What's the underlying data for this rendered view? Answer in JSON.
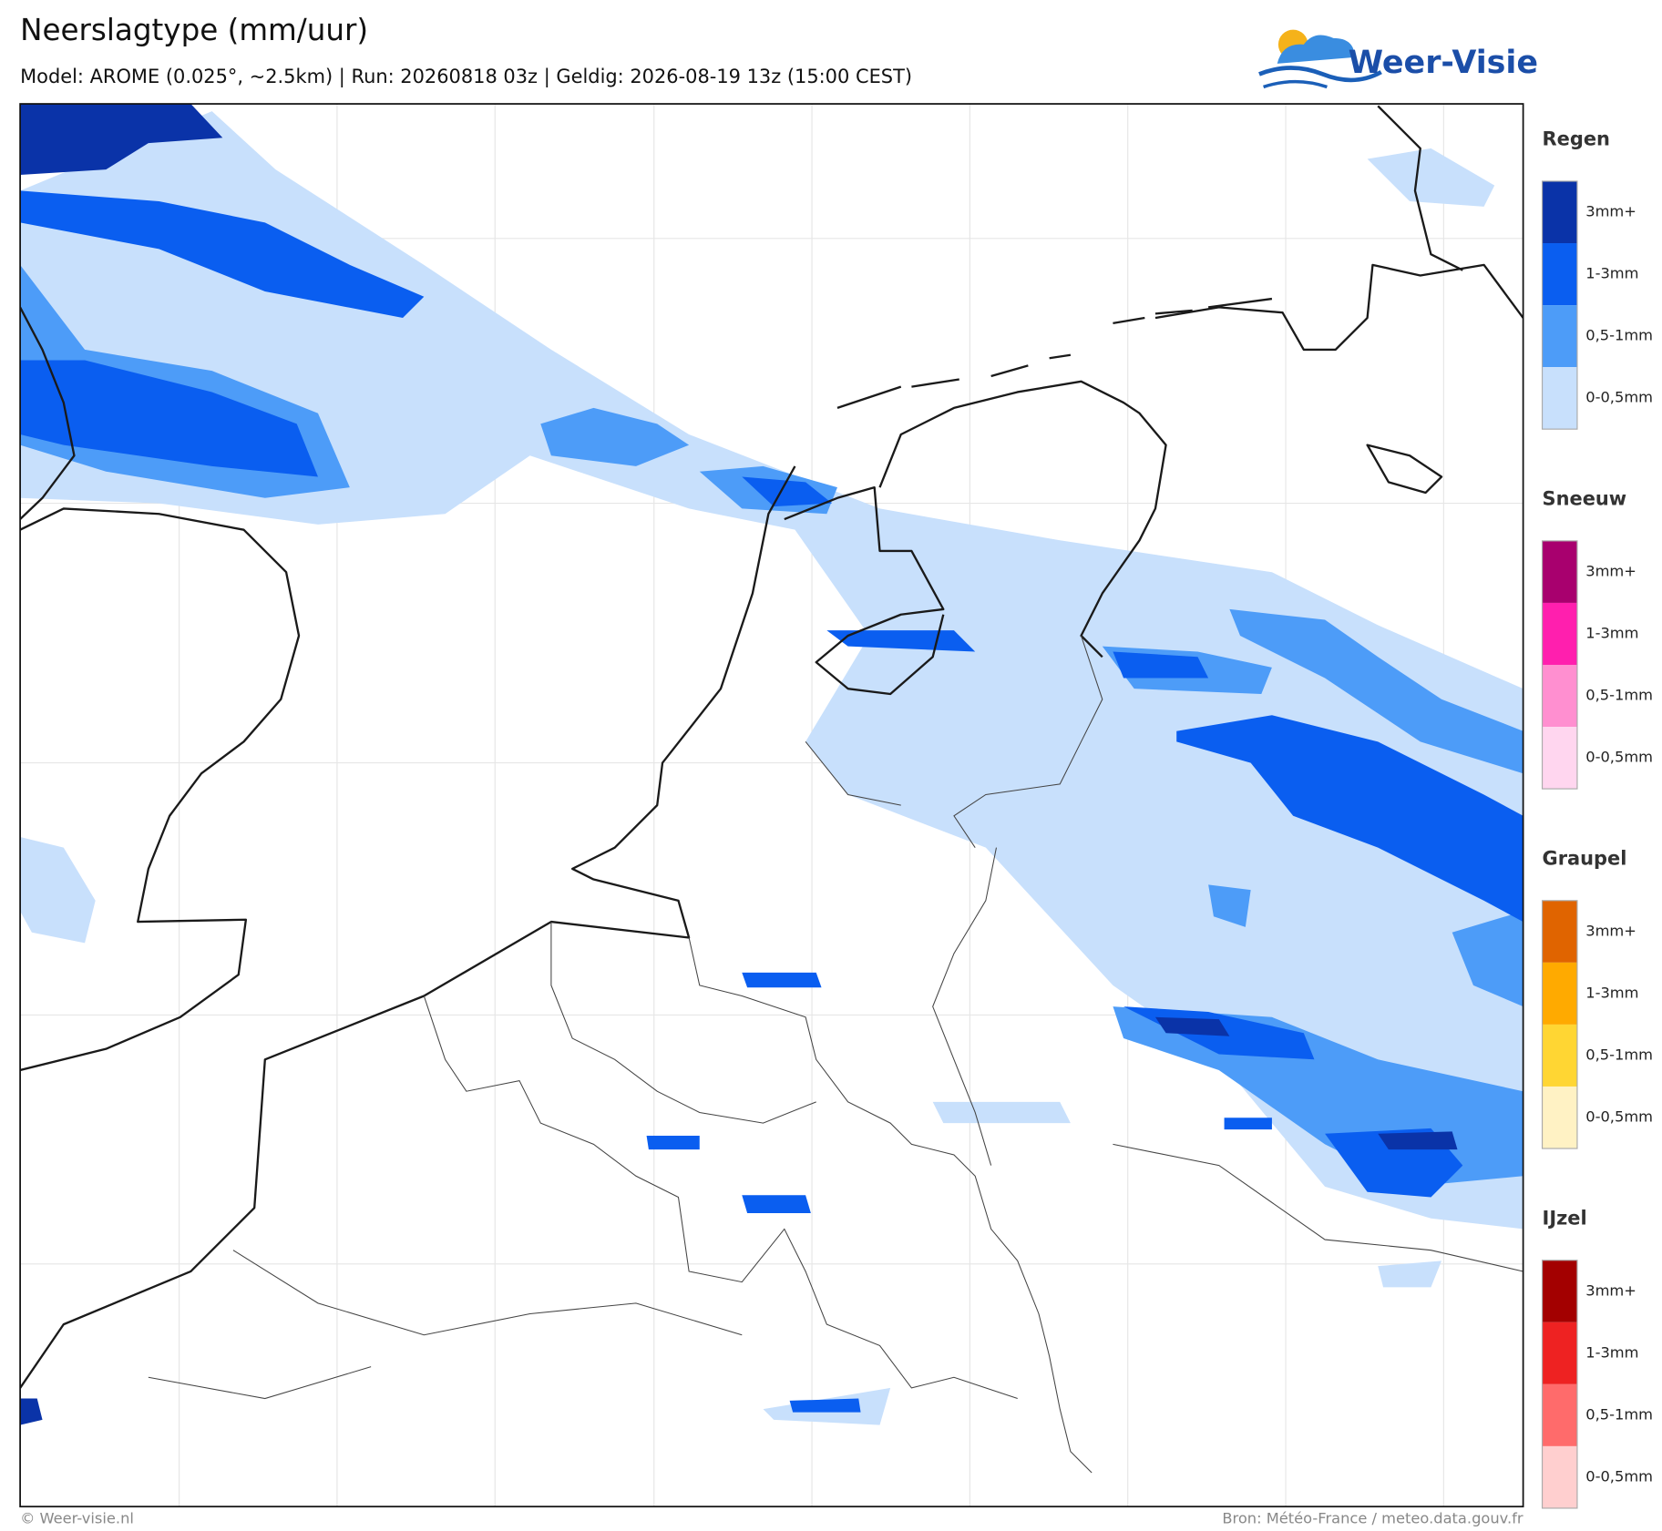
{
  "header": {
    "title": "Neerslagtype (mm/uur)",
    "subtitle": "Model: AROME (0.025°, ~2.5km)  |  Run: 20260818 03z  |  Geldig: 2026-08-19 13z (15:00 CEST)"
  },
  "logo": {
    "text": "Weer-Visie"
  },
  "legend": [
    {
      "title": "Regen",
      "items": [
        {
          "label": "3mm+",
          "color": "#0a33a8"
        },
        {
          "label": "1-3mm",
          "color": "#0a5ef0"
        },
        {
          "label": "0,5-1mm",
          "color": "#4d9cf8"
        },
        {
          "label": "0-0,5mm",
          "color": "#c8e0fc"
        }
      ]
    },
    {
      "title": "Sneeuw",
      "items": [
        {
          "label": "3mm+",
          "color": "#a8006e"
        },
        {
          "label": "1-3mm",
          "color": "#ff1fae"
        },
        {
          "label": "0,5-1mm",
          "color": "#ff8fd0"
        },
        {
          "label": "0-0,5mm",
          "color": "#ffd6ef"
        }
      ]
    },
    {
      "title": "Graupel",
      "items": [
        {
          "label": "3mm+",
          "color": "#e06400"
        },
        {
          "label": "1-3mm",
          "color": "#ffaa00"
        },
        {
          "label": "0,5-1mm",
          "color": "#ffd633"
        },
        {
          "label": "0-0,5mm",
          "color": "#fff2c4"
        }
      ]
    },
    {
      "title": "IJzel",
      "items": [
        {
          "label": "3mm+",
          "color": "#a30000"
        },
        {
          "label": "1-3mm",
          "color": "#ee2222"
        },
        {
          "label": "0,5-1mm",
          "color": "#ff6b6b"
        },
        {
          "label": "0-0,5mm",
          "color": "#ffcfcf"
        }
      ]
    }
  ],
  "footer": {
    "left": "© Weer-visie.nl",
    "right": "Bron: Météo-France / meteo.data.gouv.fr"
  }
}
